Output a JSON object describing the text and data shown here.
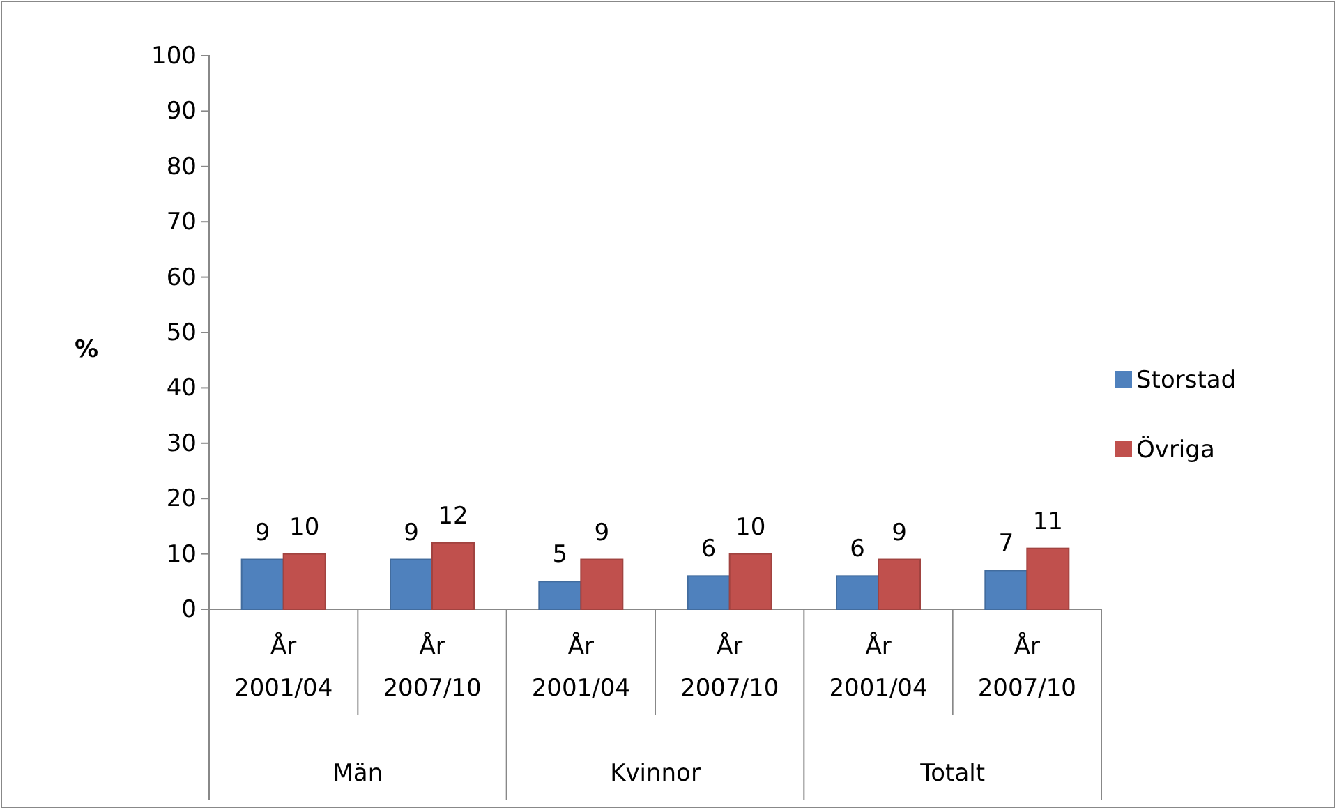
{
  "chart_data": {
    "type": "bar",
    "ylabel": "%",
    "categories": [
      "År 2001/04",
      "År 2007/10",
      "År 2001/04",
      "År 2007/10",
      "År 2001/04",
      "År 2007/10"
    ],
    "annotations": [
      "Män",
      "Kvinnor",
      "Totalt"
    ],
    "series": [
      {
        "name": "Storstad",
        "color": "#4f81bd",
        "values": [
          9,
          9,
          5,
          6,
          6,
          7
        ]
      },
      {
        "name": "Övriga",
        "color": "#c0504d",
        "values": [
          10,
          12,
          9,
          10,
          9,
          11
        ]
      }
    ],
    "ylim": [
      0,
      100
    ],
    "yticks": [
      0,
      10,
      20,
      30,
      40,
      50,
      60,
      70,
      80,
      90,
      100
    ],
    "data_labels": true,
    "legend": "right",
    "grid": false
  }
}
